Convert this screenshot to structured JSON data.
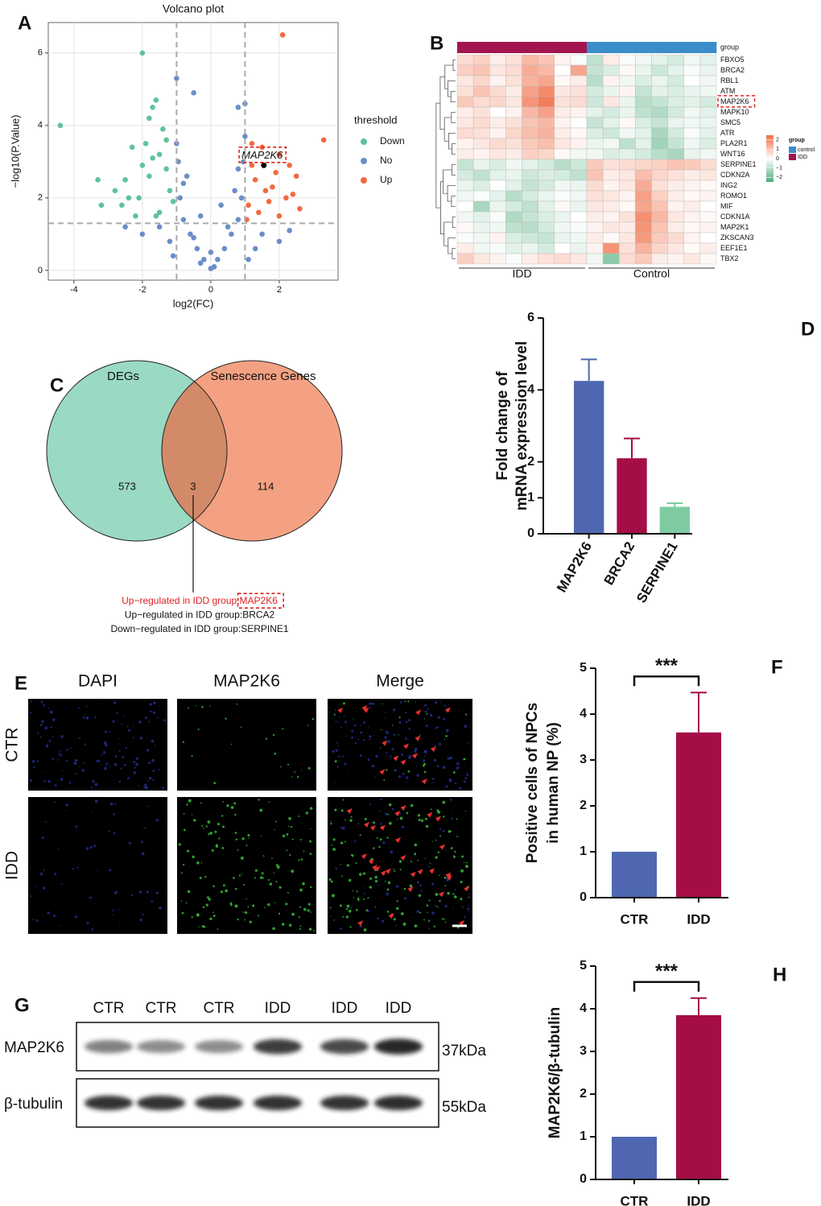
{
  "panel_labels": [
    "A",
    "B",
    "C",
    "D",
    "E",
    "F",
    "G",
    "H"
  ],
  "chart_data": [
    {
      "type": "scatter",
      "title": "Volcano plot",
      "xlabel": "log2(FC)",
      "ylabel": "−log10(P.Value)",
      "xlim": [
        -4.75,
        3.72
      ],
      "ylim": [
        -0.27,
        6.84
      ],
      "xticks": [
        -4,
        -2,
        0,
        2
      ],
      "yticks": [
        0,
        2,
        4,
        6
      ],
      "grid": true,
      "thresholds": {
        "x": [
          -1,
          1
        ],
        "y": 1.3
      },
      "legend_title": "threshold",
      "series": [
        {
          "name": "Down",
          "color": "#5ec29f",
          "x": [
            -4.4,
            -3.3,
            -3.2,
            -2.6,
            -2.0,
            -1.6,
            -1.7,
            -1.8,
            -2.3,
            -2.5,
            -1.9,
            -1.5,
            -1.3,
            -1.2,
            -1.5,
            -2.1,
            -1.8,
            -1.4,
            -2.8,
            -1.1,
            -1.6,
            -2.2,
            -2.0,
            -1.3,
            -1.7,
            -2.4
          ],
          "values": [
            4.0,
            2.5,
            1.8,
            1.8,
            6.0,
            4.7,
            4.5,
            4.2,
            3.4,
            2.5,
            3.5,
            3.2,
            2.8,
            2.2,
            1.6,
            2.0,
            2.6,
            3.9,
            2.2,
            1.9,
            1.5,
            1.5,
            2.9,
            3.6,
            3.1,
            2.0
          ]
        },
        {
          "name": "No",
          "color": "#6b8ec8",
          "x": [
            0,
            -0.2,
            0.2,
            -0.4,
            0.4,
            -0.6,
            0.6,
            -0.8,
            0.8,
            -0.9,
            0.9,
            -0.7,
            0.8,
            -0.5,
            0.5,
            -1.0,
            1.0,
            0.8,
            1.0,
            -0.5,
            -1.0,
            -1.5,
            1.5,
            -2.0,
            2.0,
            -1.2,
            1.3,
            -0.3,
            0.1,
            -2.5,
            2.3,
            0.3,
            -0.3,
            0,
            1.1,
            -1.1,
            0.95,
            -0.95,
            0.7,
            -0.8
          ],
          "values": [
            0.05,
            0.3,
            0.3,
            0.6,
            0.6,
            1.0,
            1.0,
            1.4,
            1.4,
            2.0,
            2.0,
            2.6,
            2.8,
            0.9,
            1.2,
            3.5,
            3.7,
            4.5,
            4.6,
            4.9,
            5.3,
            1.2,
            1.0,
            1.0,
            0.8,
            0.8,
            0.6,
            0.2,
            0.1,
            1.2,
            1.1,
            1.8,
            1.5,
            0.5,
            0.3,
            0.4,
            3.0,
            3.0,
            2.2,
            2.4
          ]
        },
        {
          "name": "Up",
          "color": "#f26a3f",
          "x": [
            2.1,
            3.3,
            1.2,
            1.5,
            2.0,
            2.3,
            1.3,
            1.8,
            2.2,
            2.5,
            1.1,
            1.4,
            2.0,
            1.7,
            2.6,
            1.2,
            1.9,
            1.05,
            1.6,
            2.4
          ],
          "values": [
            6.5,
            3.6,
            3.5,
            3.4,
            3.2,
            2.9,
            2.5,
            2.3,
            2.0,
            2.6,
            1.8,
            1.6,
            1.5,
            1.9,
            1.7,
            2.9,
            2.7,
            1.4,
            2.2,
            2.1
          ]
        }
      ],
      "annotation": {
        "text": "MAP2K6",
        "x": 1.55,
        "y": 2.9
      }
    },
    {
      "type": "heatmap",
      "rows": [
        "FBXO5",
        "BRCA2",
        "RBL1",
        "ATM",
        "MAP2K6",
        "MAPK10",
        "SMC5",
        "ATR",
        "PLA2R1",
        "WNT16",
        "SERPINE1",
        "CDKN2A",
        "ING2",
        "ROMO1",
        "MIF",
        "CDKN1A",
        "MAP2K1",
        "ZKSCAN3",
        "EEF1E1",
        "TBX2"
      ],
      "highlight": "MAP2K6",
      "column_groups": [
        "IDD",
        "IDD",
        "IDD",
        "IDD",
        "IDD",
        "IDD",
        "IDD",
        "IDD",
        "control",
        "control",
        "control",
        "control",
        "control",
        "control",
        "control",
        "control"
      ],
      "bottom_labels": [
        "IDD",
        "Control"
      ],
      "legend_title": "group",
      "groups": [
        {
          "name": "control",
          "color": "#3b8dc9"
        },
        {
          "name": "IDD",
          "color": "#a3154f"
        }
      ],
      "colorscale": [
        "#4dac7a",
        "#ffffff",
        "#f26b43"
      ],
      "zlim": [
        -2.5,
        2.5
      ],
      "zticks": [
        {
          "value": 2,
          "label": "2"
        },
        {
          "value": 1,
          "label": "1"
        },
        {
          "value": 0,
          "label": "0"
        },
        {
          "value": -1,
          "label": "−1"
        },
        {
          "value": -2,
          "label": "−2"
        }
      ],
      "values": [
        [
          0.6,
          0.8,
          0.3,
          0.5,
          1.2,
          1.0,
          0.2,
          -0.1,
          -0.9,
          0.3,
          -0.1,
          -0.2,
          -0.4,
          -0.6,
          -0.2,
          -0.4
        ],
        [
          0.8,
          1.0,
          0.4,
          0.6,
          1.4,
          1.2,
          0.0,
          1.5,
          -0.8,
          -0.5,
          0.1,
          -0.3,
          -0.7,
          -0.4,
          -0.1,
          -0.3
        ],
        [
          0.4,
          0.7,
          0.2,
          0.5,
          1.3,
          1.5,
          0.1,
          0.3,
          -1.0,
          0.2,
          -0.2,
          -0.5,
          -0.3,
          -0.6,
          0.0,
          -0.2
        ],
        [
          0.5,
          1.0,
          0.6,
          0.3,
          1.6,
          2.0,
          0.4,
          0.5,
          -0.6,
          -0.3,
          0.2,
          -0.8,
          -0.4,
          -0.5,
          -0.3,
          -0.2
        ],
        [
          0.9,
          0.6,
          0.7,
          0.4,
          1.8,
          2.2,
          0.5,
          0.6,
          -0.7,
          0.4,
          -0.3,
          -1.0,
          -0.8,
          -0.5,
          -0.4,
          -0.6
        ],
        [
          0.3,
          0.5,
          0.0,
          0.2,
          1.2,
          1.6,
          0.3,
          0.2,
          -0.4,
          -0.6,
          -0.3,
          -0.9,
          -1.1,
          -0.6,
          -0.2,
          -0.4
        ],
        [
          0.4,
          0.6,
          0.3,
          0.5,
          1.0,
          1.2,
          0.2,
          0.0,
          -0.8,
          -0.4,
          0.1,
          -0.5,
          -0.8,
          -0.3,
          -0.2,
          -0.3
        ],
        [
          0.6,
          0.5,
          0.2,
          0.7,
          1.1,
          1.3,
          0.3,
          0.1,
          -0.5,
          -0.7,
          -0.2,
          -0.4,
          -1.2,
          -0.6,
          -0.1,
          -0.4
        ],
        [
          0.2,
          0.4,
          0.6,
          0.5,
          0.9,
          1.1,
          0.4,
          0.2,
          -0.3,
          -0.2,
          -0.9,
          -0.4,
          -1.3,
          -0.8,
          -0.2,
          -0.5
        ],
        [
          0.3,
          0.2,
          0.4,
          0.3,
          0.8,
          0.7,
          0.1,
          -0.2,
          -0.2,
          -0.5,
          -0.4,
          -0.6,
          -1.0,
          -1.2,
          -0.3,
          -0.2
        ],
        [
          -0.8,
          -0.3,
          -0.5,
          -0.2,
          -0.4,
          -0.6,
          -1.0,
          -0.7,
          0.9,
          0.5,
          0.6,
          0.7,
          0.8,
          1.0,
          0.9,
          0.6
        ],
        [
          -0.6,
          -0.9,
          -0.4,
          -0.3,
          -0.7,
          -0.5,
          -0.6,
          -0.9,
          1.0,
          0.3,
          0.4,
          1.1,
          0.7,
          0.5,
          0.3,
          0.4
        ],
        [
          -0.3,
          -0.5,
          0.0,
          -0.4,
          -0.8,
          -0.6,
          -0.2,
          -0.3,
          0.6,
          0.2,
          0.4,
          1.4,
          0.5,
          0.3,
          0.2,
          0.1
        ],
        [
          -0.2,
          -0.1,
          -0.4,
          -1.0,
          -0.6,
          -0.3,
          -0.1,
          -0.2,
          0.5,
          0.4,
          0.2,
          1.6,
          0.8,
          0.3,
          0.1,
          0.2
        ],
        [
          0.0,
          -1.2,
          -0.3,
          -0.6,
          -0.9,
          -0.4,
          0.1,
          -0.3,
          0.4,
          0.3,
          0.1,
          1.5,
          1.0,
          0.2,
          0.3,
          0.0
        ],
        [
          -0.2,
          -0.4,
          -0.1,
          -1.1,
          -0.8,
          -0.5,
          -0.3,
          0.0,
          0.3,
          0.2,
          0.5,
          1.9,
          1.2,
          0.4,
          0.2,
          0.1
        ],
        [
          0.1,
          -0.3,
          -0.2,
          -0.9,
          -1.0,
          -0.6,
          -0.2,
          -0.1,
          0.2,
          0.4,
          0.3,
          1.8,
          1.0,
          0.3,
          0.1,
          0.2
        ],
        [
          -0.1,
          -0.2,
          0.2,
          -0.5,
          -0.7,
          -0.8,
          -0.3,
          -0.2,
          0.3,
          0.1,
          0.4,
          1.7,
          0.9,
          0.6,
          0.2,
          0.0
        ],
        [
          0.3,
          -0.2,
          -0.1,
          -0.4,
          -0.3,
          -0.6,
          0.0,
          -0.3,
          0.2,
          1.8,
          0.5,
          1.3,
          0.7,
          0.4,
          0.1,
          0.3
        ],
        [
          0.8,
          0.4,
          0.2,
          -0.1,
          0.3,
          0.5,
          0.6,
          0.4,
          -0.2,
          -1.6,
          0.6,
          0.9,
          0.3,
          0.2,
          0.4,
          0.1
        ]
      ]
    },
    {
      "type": "bar",
      "categories": [
        "MAP2K6",
        "BRCA2",
        "SERPINE1"
      ],
      "values": [
        4.25,
        2.1,
        0.75
      ],
      "errors": [
        0.6,
        0.55,
        0.1
      ],
      "colors": [
        "#4e67b0",
        "#a50d47",
        "#7ecba1"
      ],
      "ylabel": [
        "Fold change of",
        "mRNA expression level"
      ],
      "ylim": [
        0,
        6
      ],
      "yticks": [
        0,
        1,
        2,
        4,
        6
      ]
    },
    {
      "type": "bar",
      "categories": [
        "CTR",
        "IDD"
      ],
      "values": [
        1,
        3.6
      ],
      "errors": [
        0,
        0.87
      ],
      "colors": [
        "#4e67b0",
        "#a50d47"
      ],
      "ylabel": [
        "Positive cells of NPCs",
        "in human NP (%)"
      ],
      "ylim": [
        0,
        5
      ],
      "yticks": [
        0,
        1,
        2,
        3,
        4,
        5
      ],
      "significance": "***"
    },
    {
      "type": "bar",
      "categories": [
        "CTR",
        "IDD"
      ],
      "values": [
        1,
        3.85
      ],
      "errors": [
        0,
        0.4
      ],
      "colors": [
        "#4e67b0",
        "#a50d47"
      ],
      "ylabel": [
        "MAP2K6/β-tubulin"
      ],
      "ylim": [
        0,
        5
      ],
      "yticks": [
        0,
        1,
        2,
        3,
        4,
        5
      ],
      "significance": "***"
    }
  ],
  "venn": {
    "sets": [
      {
        "name": "DEGs",
        "color": "#9ad9c2"
      },
      {
        "name": "Senescence Genes",
        "color": "#f4a183"
      }
    ],
    "overlap_color": "#d38a69",
    "counts": {
      "left_only": 573,
      "both": 3,
      "right_only": 114
    },
    "notes": [
      {
        "prefix": "Up−regulated in IDD group:",
        "gene": "MAP2K6"
      },
      {
        "prefix": "Up−regulated in IDD group:",
        "gene": "BRCA2"
      },
      {
        "prefix": "Down−regulated in IDD group:",
        "gene": "SERPINE1"
      }
    ]
  },
  "immunofluorescence": {
    "columns": [
      {
        "name": "DAPI",
        "color": "#2b3a9a"
      },
      {
        "name": "MAP2K6",
        "color": "#2ea043"
      },
      {
        "name": "Merge",
        "color": "#111111"
      }
    ],
    "rows": [
      "CTR",
      "IDD"
    ]
  },
  "western_blot": {
    "lanes": [
      "CTR",
      "CTR",
      "CTR",
      "IDD",
      "IDD",
      "IDD"
    ],
    "rows": [
      {
        "name": "MAP2K6",
        "size": "37kDa"
      },
      {
        "name": "β-tubulin",
        "size": "55kDa"
      }
    ]
  }
}
